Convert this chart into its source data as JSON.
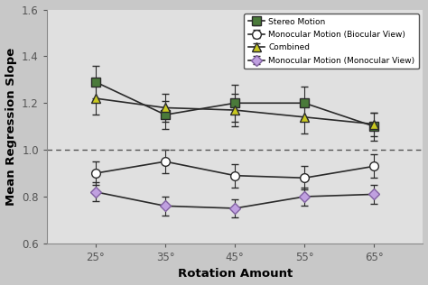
{
  "x": [
    25,
    35,
    45,
    55,
    65
  ],
  "x_labels": [
    "25°",
    "35°",
    "45°",
    "55°",
    "65°"
  ],
  "stereo_motion": [
    1.29,
    1.15,
    1.2,
    1.2,
    1.1
  ],
  "stereo_motion_err": [
    0.07,
    0.06,
    0.08,
    0.07,
    0.06
  ],
  "monocular_binocular": [
    0.9,
    0.95,
    0.89,
    0.88,
    0.93
  ],
  "monocular_binocular_err": [
    0.05,
    0.05,
    0.05,
    0.05,
    0.05
  ],
  "combined": [
    1.22,
    1.18,
    1.17,
    1.14,
    1.11
  ],
  "combined_err": [
    0.07,
    0.06,
    0.07,
    0.07,
    0.05
  ],
  "monocular_monocular": [
    0.82,
    0.76,
    0.75,
    0.8,
    0.81
  ],
  "monocular_monocular_err": [
    0.04,
    0.04,
    0.04,
    0.04,
    0.04
  ],
  "line_color": "#2a2a2a",
  "stereo_face_color": "#4a7a3a",
  "stereo_edge_color": "#2a2a2a",
  "combined_face_color": "#c8c820",
  "combined_edge_color": "#2a2a2a",
  "mono_mono_face_color": "#c0a0e0",
  "mono_mono_edge_color": "#8060a0",
  "xlabel": "Rotation Amount",
  "ylabel": "Mean Regression Slope",
  "ylim": [
    0.6,
    1.6
  ],
  "yticks": [
    0.6,
    0.8,
    1.0,
    1.2,
    1.4,
    1.6
  ],
  "dashed_line_y": 1.0,
  "legend_labels": [
    "Stereo Motion",
    "Monocular Motion (Biocular View)",
    "Combined",
    "Monocular Motion (Monocular View)"
  ],
  "bg_color": "#e8e8e8",
  "fig_bg": "#d8d8d8"
}
